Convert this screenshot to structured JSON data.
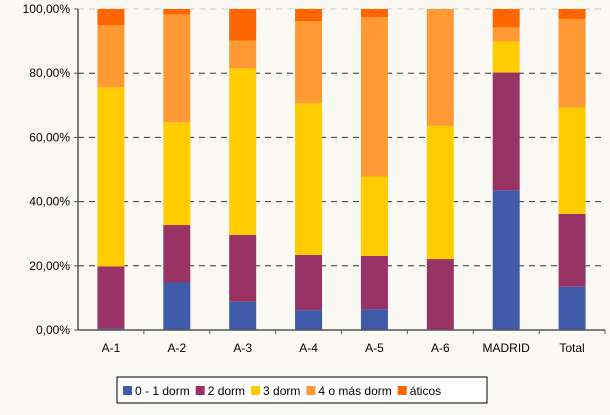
{
  "chart_data": {
    "type": "bar",
    "stacked": true,
    "percent": true,
    "categories": [
      "A-1",
      "A-2",
      "A-3",
      "A-4",
      "A-5",
      "A-6",
      "MADRID",
      "Total"
    ],
    "series": [
      {
        "name": "0 - 1 dorm",
        "color": "#3f5ba9",
        "values": [
          0.5,
          14.8,
          8.8,
          6.2,
          6.5,
          0,
          43.5,
          13.5
        ]
      },
      {
        "name": "2 dorm",
        "color": "#993366",
        "values": [
          19.3,
          17.9,
          20.8,
          17.2,
          16.6,
          22.1,
          36.7,
          22.7
        ]
      },
      {
        "name": "3 dorm",
        "color": "#ffcc00",
        "values": [
          55.8,
          32.0,
          51.9,
          47.2,
          24.7,
          41.5,
          9.7,
          33.1
        ]
      },
      {
        "name": "4 o más dorm",
        "color": "#ff9933",
        "values": [
          19.3,
          33.6,
          8.7,
          25.6,
          49.6,
          36.4,
          4.4,
          27.5
        ]
      },
      {
        "name": "áticos",
        "color": "#ff6600",
        "values": [
          5.1,
          1.7,
          9.8,
          3.8,
          2.6,
          0,
          5.7,
          3.2
        ]
      }
    ],
    "yticks": [
      "0,00%",
      "20,00%",
      "40,00%",
      "60,00%",
      "80,00%",
      "100,00%"
    ],
    "ylim": [
      0,
      100
    ],
    "grid": true,
    "legend": "bottom"
  }
}
